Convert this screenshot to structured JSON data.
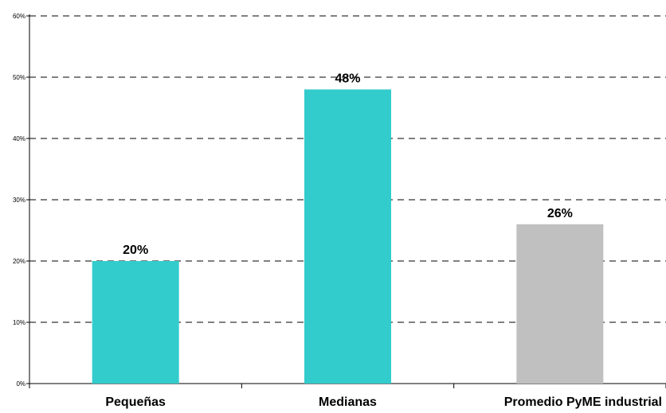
{
  "chart_data": {
    "type": "bar",
    "categories": [
      "Pequeñas",
      "Medianas",
      "Promedio PyME industrial"
    ],
    "values": [
      20,
      48,
      26
    ],
    "value_labels": [
      "20%",
      "48%",
      "26%"
    ],
    "colors": [
      "#33cccc",
      "#33cccc",
      "#c0c0c0"
    ],
    "ylim": [
      0,
      60
    ],
    "yticks": [
      0,
      10,
      20,
      30,
      40,
      50,
      60
    ],
    "ytick_labels": [
      "0%",
      "10%",
      "20%",
      "30%",
      "40%",
      "50%",
      "60%"
    ],
    "grid": "dashed horizontal",
    "legend": "none"
  }
}
